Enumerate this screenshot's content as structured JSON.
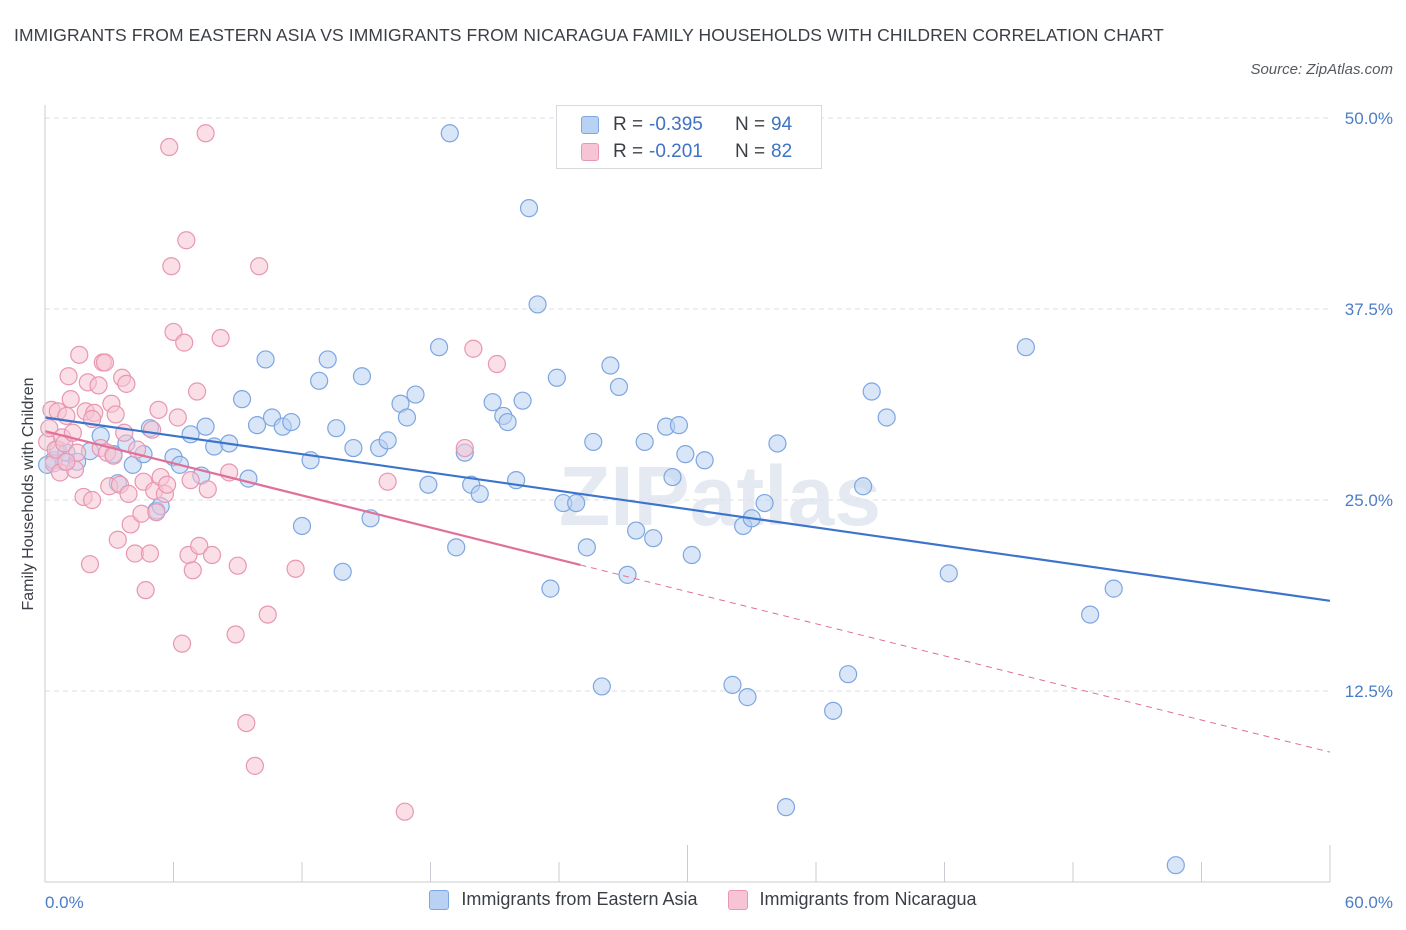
{
  "title": "IMMIGRANTS FROM EASTERN ASIA VS IMMIGRANTS FROM NICARAGUA FAMILY HOUSEHOLDS WITH CHILDREN CORRELATION CHART",
  "source": "Source: ZipAtlas.com",
  "watermark": "ZIPatlas",
  "colors": {
    "blue_fill": "#b9d1f2",
    "blue_stroke": "#7ea6e0",
    "blue_line": "#3b74cc",
    "pink_fill": "#f6c4d4",
    "pink_stroke": "#e896b2",
    "pink_line": "#e0709a",
    "grid": "#d9dde3",
    "tick_text": "#4a7dc8"
  },
  "legend": {
    "rows": [
      {
        "r_label": "R =",
        "r_value": "-0.395",
        "n_label": "N =",
        "n_value": "94",
        "swatch": "blue"
      },
      {
        "r_label": "R =",
        "r_value": "-0.201",
        "n_label": "N =",
        "n_value": "82",
        "swatch": "pink"
      }
    ]
  },
  "bottom_legend": [
    {
      "label": "Immigrants from Eastern Asia",
      "swatch": "blue"
    },
    {
      "label": "Immigrants from Nicaragua",
      "swatch": "pink"
    }
  ],
  "chart_data": {
    "type": "scatter",
    "title": "IMMIGRANTS FROM EASTERN ASIA VS IMMIGRANTS FROM NICARAGUA FAMILY HOUSEHOLDS WITH CHILDREN CORRELATION CHART",
    "xlabel": "",
    "ylabel": "Family Households with Children",
    "xlim": [
      0,
      60
    ],
    "ylim": [
      0,
      50
    ],
    "x_tick_labels": [
      "0.0%",
      "60.0%"
    ],
    "y_ticks": [
      12.5,
      25.0,
      37.5,
      50.0
    ],
    "y_tick_labels": [
      "12.5%",
      "25.0%",
      "37.5%",
      "50.0%"
    ],
    "grid": true,
    "legend_position": "top-center",
    "series": [
      {
        "name": "Immigrants from Eastern Asia",
        "color": "blue",
        "trend": {
          "x0": 0,
          "y0": 30.4,
          "x1": 60,
          "y1": 18.4,
          "dashed_from_x": null
        },
        "points": [
          [
            0.1,
            27.3
          ],
          [
            0.4,
            27.6
          ],
          [
            0.6,
            28.3
          ],
          [
            0.9,
            27.5
          ],
          [
            1.0,
            28.1
          ],
          [
            1.5,
            27.5
          ],
          [
            2.1,
            28.2
          ],
          [
            2.6,
            29.2
          ],
          [
            3.2,
            28.0
          ],
          [
            3.4,
            26.1
          ],
          [
            3.8,
            28.7
          ],
          [
            4.1,
            27.3
          ],
          [
            4.6,
            28.0
          ],
          [
            4.9,
            29.7
          ],
          [
            5.2,
            24.3
          ],
          [
            5.4,
            24.6
          ],
          [
            6.0,
            27.8
          ],
          [
            6.3,
            27.3
          ],
          [
            6.8,
            29.3
          ],
          [
            7.3,
            26.6
          ],
          [
            7.5,
            29.8
          ],
          [
            7.9,
            28.5
          ],
          [
            8.6,
            28.7
          ],
          [
            9.2,
            31.6
          ],
          [
            9.5,
            26.4
          ],
          [
            9.9,
            29.9
          ],
          [
            10.3,
            34.2
          ],
          [
            10.6,
            30.4
          ],
          [
            11.1,
            29.8
          ],
          [
            11.5,
            30.1
          ],
          [
            12.0,
            23.3
          ],
          [
            12.4,
            27.6
          ],
          [
            12.8,
            32.8
          ],
          [
            13.2,
            34.2
          ],
          [
            13.6,
            29.7
          ],
          [
            13.9,
            20.3
          ],
          [
            14.4,
            28.4
          ],
          [
            14.8,
            33.1
          ],
          [
            15.2,
            23.8
          ],
          [
            15.6,
            28.4
          ],
          [
            16.0,
            28.9
          ],
          [
            16.6,
            31.3
          ],
          [
            16.9,
            30.4
          ],
          [
            17.3,
            31.9
          ],
          [
            17.9,
            26.0
          ],
          [
            18.4,
            35.0
          ],
          [
            18.9,
            49.0
          ],
          [
            19.2,
            21.9
          ],
          [
            19.6,
            28.1
          ],
          [
            19.9,
            26.0
          ],
          [
            20.3,
            25.4
          ],
          [
            20.9,
            31.4
          ],
          [
            21.4,
            30.5
          ],
          [
            21.6,
            30.1
          ],
          [
            22.0,
            26.3
          ],
          [
            22.3,
            31.5
          ],
          [
            22.6,
            44.1
          ],
          [
            23.0,
            37.8
          ],
          [
            23.6,
            19.2
          ],
          [
            23.9,
            33.0
          ],
          [
            24.2,
            24.8
          ],
          [
            24.8,
            24.8
          ],
          [
            25.3,
            21.9
          ],
          [
            25.6,
            28.8
          ],
          [
            26.0,
            12.8
          ],
          [
            26.4,
            33.8
          ],
          [
            26.8,
            32.4
          ],
          [
            27.2,
            20.1
          ],
          [
            27.6,
            23.0
          ],
          [
            28.0,
            28.8
          ],
          [
            28.4,
            22.5
          ],
          [
            29.0,
            29.8
          ],
          [
            29.3,
            26.5
          ],
          [
            29.6,
            29.9
          ],
          [
            29.9,
            28.0
          ],
          [
            30.2,
            21.4
          ],
          [
            30.8,
            27.6
          ],
          [
            32.1,
            12.9
          ],
          [
            32.6,
            23.3
          ],
          [
            32.8,
            12.1
          ],
          [
            33.0,
            23.8
          ],
          [
            33.6,
            24.8
          ],
          [
            34.2,
            28.7
          ],
          [
            34.6,
            4.9
          ],
          [
            36.8,
            11.2
          ],
          [
            37.5,
            13.6
          ],
          [
            38.2,
            25.9
          ],
          [
            38.6,
            32.1
          ],
          [
            39.3,
            30.4
          ],
          [
            42.2,
            20.2
          ],
          [
            45.8,
            35.0
          ],
          [
            48.8,
            17.5
          ],
          [
            49.9,
            19.2
          ],
          [
            52.8,
            1.1
          ]
        ]
      },
      {
        "name": "Immigrants from Nicaragua",
        "color": "pink",
        "trend": {
          "x0": 0,
          "y0": 29.5,
          "x1": 60,
          "y1": 8.5,
          "dashed_from_x": 25
        },
        "points": [
          [
            0.1,
            28.8
          ],
          [
            0.2,
            29.7
          ],
          [
            0.3,
            30.9
          ],
          [
            0.4,
            27.4
          ],
          [
            0.5,
            28.3
          ],
          [
            0.6,
            30.8
          ],
          [
            0.7,
            26.8
          ],
          [
            0.8,
            29.1
          ],
          [
            0.9,
            28.7
          ],
          [
            1.0,
            30.5
          ],
          [
            1.1,
            33.1
          ],
          [
            1.2,
            31.6
          ],
          [
            1.3,
            29.4
          ],
          [
            1.4,
            27.0
          ],
          [
            1.5,
            28.1
          ],
          [
            1.6,
            34.5
          ],
          [
            1.8,
            25.2
          ],
          [
            1.9,
            30.8
          ],
          [
            2.0,
            32.7
          ],
          [
            2.1,
            20.8
          ],
          [
            2.2,
            25.0
          ],
          [
            2.3,
            30.7
          ],
          [
            2.5,
            32.5
          ],
          [
            2.6,
            28.4
          ],
          [
            2.7,
            34.0
          ],
          [
            2.8,
            34.0
          ],
          [
            2.9,
            28.1
          ],
          [
            3.0,
            25.9
          ],
          [
            3.1,
            31.3
          ],
          [
            3.2,
            27.9
          ],
          [
            3.3,
            30.6
          ],
          [
            3.4,
            22.4
          ],
          [
            3.5,
            26.0
          ],
          [
            3.6,
            33.0
          ],
          [
            3.7,
            29.4
          ],
          [
            3.8,
            32.6
          ],
          [
            3.9,
            25.4
          ],
          [
            4.0,
            23.4
          ],
          [
            4.2,
            21.5
          ],
          [
            4.3,
            28.3
          ],
          [
            4.5,
            24.1
          ],
          [
            4.6,
            26.2
          ],
          [
            4.7,
            19.1
          ],
          [
            4.9,
            21.5
          ],
          [
            5.0,
            29.6
          ],
          [
            5.1,
            25.6
          ],
          [
            5.2,
            24.2
          ],
          [
            5.3,
            30.9
          ],
          [
            5.4,
            26.5
          ],
          [
            5.6,
            25.4
          ],
          [
            5.7,
            26.0
          ],
          [
            5.8,
            48.1
          ],
          [
            5.9,
            40.3
          ],
          [
            6.0,
            36.0
          ],
          [
            6.2,
            30.4
          ],
          [
            6.4,
            15.6
          ],
          [
            6.5,
            35.3
          ],
          [
            6.6,
            42.0
          ],
          [
            6.7,
            21.4
          ],
          [
            6.8,
            26.3
          ],
          [
            6.9,
            20.4
          ],
          [
            7.1,
            32.1
          ],
          [
            7.2,
            22.0
          ],
          [
            7.5,
            49.0
          ],
          [
            7.6,
            25.7
          ],
          [
            7.8,
            21.4
          ],
          [
            8.2,
            35.6
          ],
          [
            8.6,
            26.8
          ],
          [
            8.9,
            16.2
          ],
          [
            9.0,
            20.7
          ],
          [
            9.4,
            10.4
          ],
          [
            9.8,
            7.6
          ],
          [
            10.0,
            40.3
          ],
          [
            10.4,
            17.5
          ],
          [
            11.7,
            20.5
          ],
          [
            16.0,
            26.2
          ],
          [
            16.8,
            4.6
          ],
          [
            19.6,
            28.4
          ],
          [
            20.0,
            34.9
          ],
          [
            21.1,
            33.9
          ],
          [
            2.2,
            30.3
          ],
          [
            1.0,
            27.5
          ]
        ]
      }
    ]
  }
}
